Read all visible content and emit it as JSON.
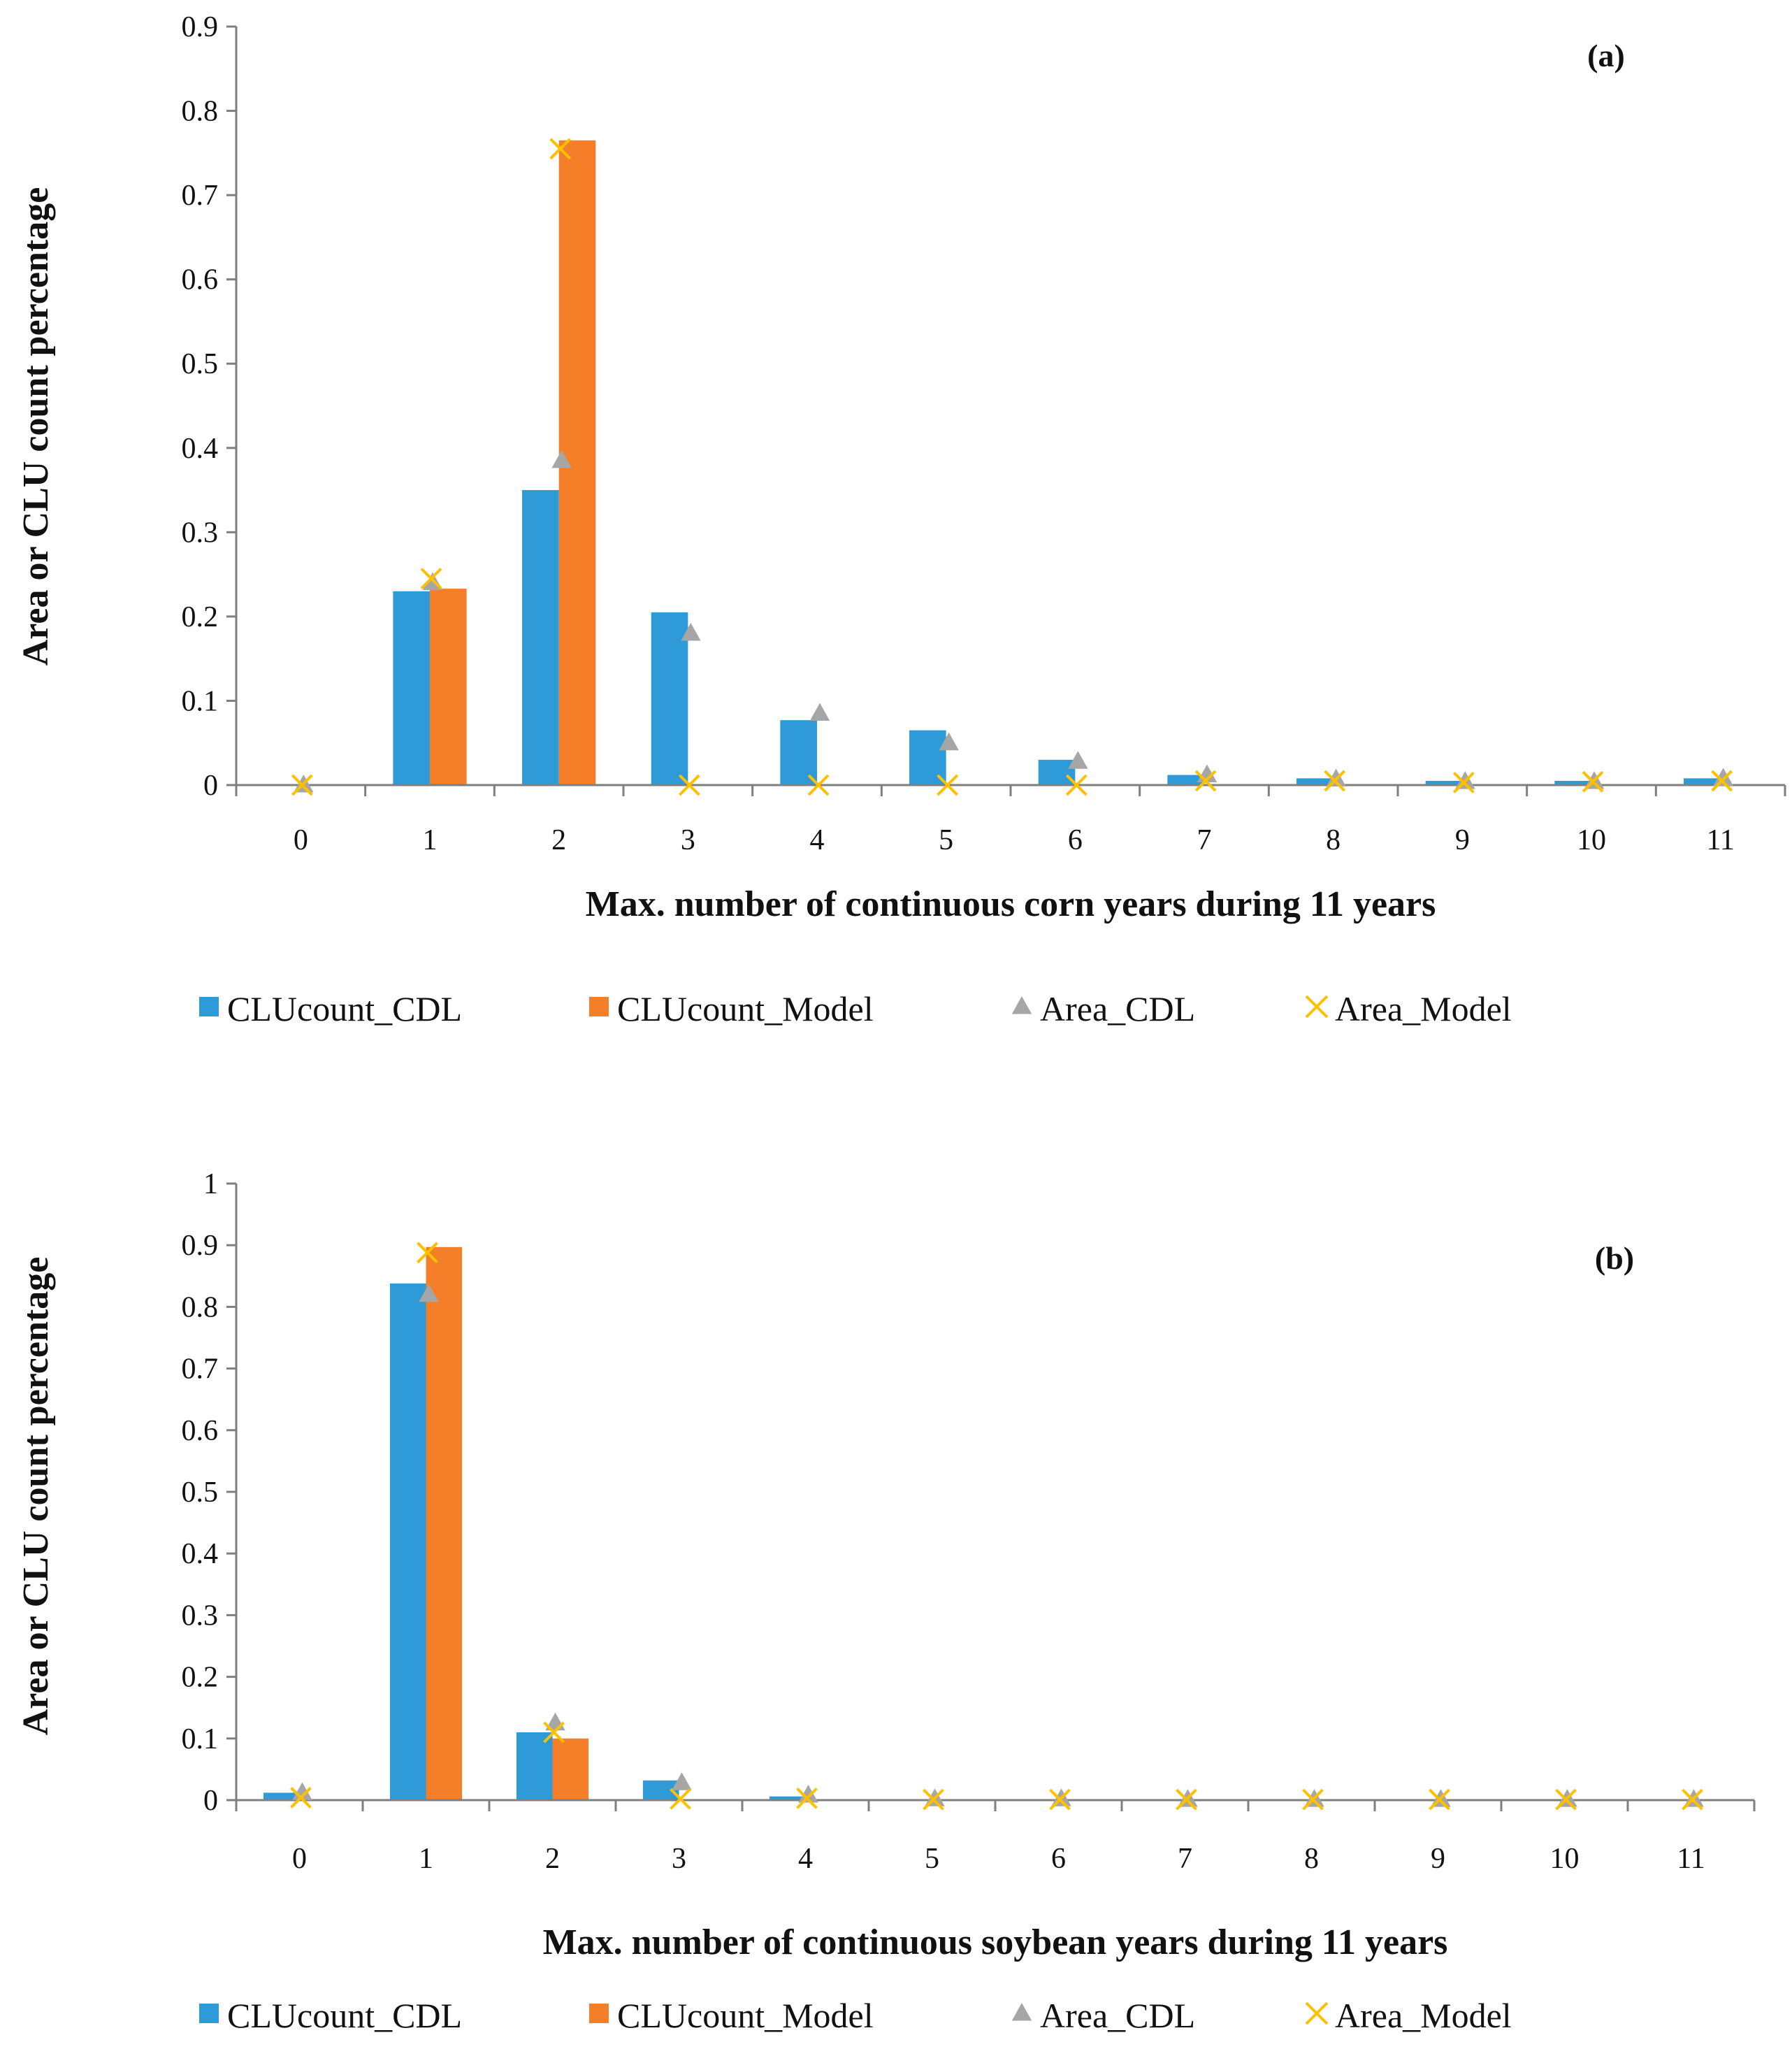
{
  "colors": {
    "CLUcount_CDL": "#2E9AD8",
    "CLUcount_Model": "#F57E29",
    "Area_CDL": "#A6A6A6",
    "Area_Model": "#FFC000",
    "axis": "#7f7f7f",
    "text": "#111111"
  },
  "chart_data": [
    {
      "type": "bar",
      "panel": "(a)",
      "xlabel": "Max. number of continuous corn years during 11 years",
      "ylabel": "Area or CLU count percentage",
      "categories": [
        "0",
        "1",
        "2",
        "3",
        "4",
        "5",
        "6",
        "7",
        "8",
        "9",
        "10",
        "11"
      ],
      "yticks": [
        "0",
        "0.1",
        "0.2",
        "0.3",
        "0.4",
        "0.5",
        "0.6",
        "0.7",
        "0.8",
        "0.9"
      ],
      "ylim": [
        0,
        0.9
      ],
      "series": [
        {
          "name": "CLUcount_CDL",
          "kind": "bar",
          "values": [
            0,
            0.23,
            0.35,
            0.205,
            0.077,
            0.065,
            0.03,
            0.012,
            0.008,
            0.005,
            0.005,
            0.008
          ]
        },
        {
          "name": "CLUcount_Model",
          "kind": "bar",
          "values": [
            0,
            0.233,
            0.765,
            0,
            0,
            0,
            0,
            0,
            0,
            0,
            0,
            0
          ]
        },
        {
          "name": "Area_CDL",
          "kind": "triangle",
          "values": [
            0,
            0.24,
            0.385,
            0.18,
            0.085,
            0.05,
            0.028,
            0.012,
            0.007,
            0.004,
            0.004,
            0.008
          ]
        },
        {
          "name": "Area_Model",
          "kind": "cross",
          "values": [
            0,
            0.245,
            0.755,
            0,
            0,
            0,
            0,
            0.005,
            0.005,
            0.003,
            0.004,
            0.005
          ]
        }
      ],
      "legend": [
        "CLUcount_CDL",
        "CLUcount_Model",
        "Area_CDL",
        "Area_Model"
      ]
    },
    {
      "type": "bar",
      "panel": "(b)",
      "xlabel": "Max. number of continuous soybean years during 11 years",
      "ylabel": "Area or CLU count percentage",
      "categories": [
        "0",
        "1",
        "2",
        "3",
        "4",
        "5",
        "6",
        "7",
        "8",
        "9",
        "10",
        "11"
      ],
      "yticks": [
        "0",
        "0.1",
        "0.2",
        "0.3",
        "0.4",
        "0.5",
        "0.6",
        "0.7",
        "0.8",
        "0.9",
        "1"
      ],
      "ylim": [
        0,
        1
      ],
      "series": [
        {
          "name": "CLUcount_CDL",
          "kind": "bar",
          "values": [
            0.012,
            0.838,
            0.11,
            0.032,
            0.006,
            0,
            0,
            0,
            0,
            0,
            0,
            0
          ]
        },
        {
          "name": "CLUcount_Model",
          "kind": "bar",
          "values": [
            0,
            0.897,
            0.1,
            0,
            0,
            0,
            0,
            0,
            0,
            0,
            0,
            0
          ]
        },
        {
          "name": "Area_CDL",
          "kind": "triangle",
          "values": [
            0.012,
            0.82,
            0.125,
            0.028,
            0.008,
            0.002,
            0.002,
            0.001,
            0.001,
            0.001,
            0.001,
            0.001
          ]
        },
        {
          "name": "Area_Model",
          "kind": "cross",
          "values": [
            0.004,
            0.888,
            0.11,
            0.002,
            0.003,
            0.001,
            0.001,
            0.001,
            0.001,
            0.001,
            0.001,
            0.001
          ]
        }
      ],
      "legend": [
        "CLUcount_CDL",
        "CLUcount_Model",
        "Area_CDL",
        "Area_Model"
      ]
    }
  ]
}
